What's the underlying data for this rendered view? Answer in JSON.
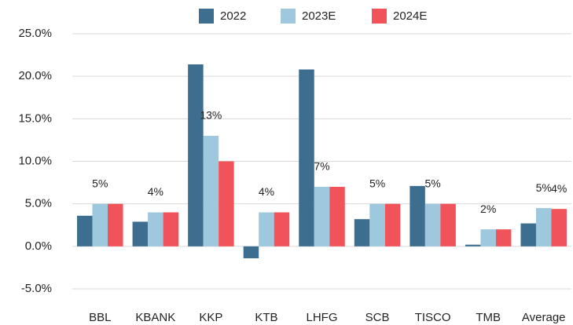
{
  "chart_data": {
    "type": "bar",
    "categories": [
      "BBL",
      "KBANK",
      "KKP",
      "KTB",
      "LHFG",
      "SCB",
      "TISCO",
      "TMB",
      "Average"
    ],
    "series": [
      {
        "name": "2022",
        "color": "#3d6e8f",
        "values": [
          3.6,
          2.9,
          21.4,
          -1.4,
          20.8,
          3.2,
          7.1,
          0.2,
          2.7
        ]
      },
      {
        "name": "2023E",
        "color": "#9ec8de",
        "values": [
          5,
          4,
          13,
          4,
          7,
          5,
          5,
          2,
          4.5
        ],
        "value_labels": [
          "5%",
          "4%",
          "13%",
          "4%",
          "7%",
          "5%",
          "5%",
          "2%",
          "5%"
        ]
      },
      {
        "name": "2024E",
        "color": "#f0535a",
        "values": [
          5,
          4,
          10,
          4,
          7,
          5,
          5,
          2,
          4.4
        ],
        "value_labels": [
          null,
          null,
          null,
          null,
          null,
          null,
          null,
          null,
          "4%"
        ]
      }
    ],
    "ylim": [
      -5,
      25
    ],
    "yticks": [
      {
        "value": -5,
        "label": "-5.0%"
      },
      {
        "value": 0,
        "label": "0.0%"
      },
      {
        "value": 5,
        "label": "5.0%"
      },
      {
        "value": 10,
        "label": "10.0%"
      },
      {
        "value": 15,
        "label": "15.0%"
      },
      {
        "value": 20,
        "label": "20.0%"
      },
      {
        "value": 25,
        "label": "25.0%"
      }
    ],
    "grid": true,
    "legend": "top"
  }
}
